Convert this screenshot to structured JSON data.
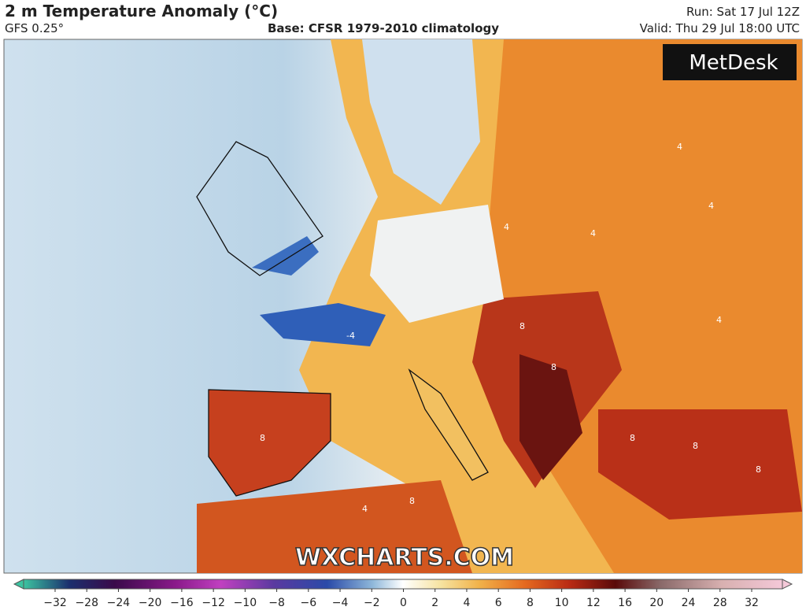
{
  "header": {
    "title": "2 m Temperature Anomaly (°C)",
    "subtitle": "GFS 0.25°",
    "base": "Base: CFSR 1979-2010 climatology",
    "run": "Run: Sat 17 Jul 12Z",
    "valid": "Valid: Thu 29 Jul 18:00 UTC"
  },
  "map": {
    "logo": "MetDesk",
    "watermark": "WXCHARTS.COM",
    "contour_labels": [
      "4",
      "4",
      "4",
      "8",
      "8",
      "8",
      "8",
      "8",
      "8",
      "4",
      "-4",
      "4",
      "8",
      "4"
    ]
  },
  "legend": {
    "ticks": [
      "−32",
      "−28",
      "−24",
      "−20",
      "−16",
      "−12",
      "−10",
      "−8",
      "−6",
      "−4",
      "−2",
      "0",
      "2",
      "4",
      "6",
      "8",
      "10",
      "12",
      "16",
      "20",
      "24",
      "28",
      "32"
    ]
  }
}
